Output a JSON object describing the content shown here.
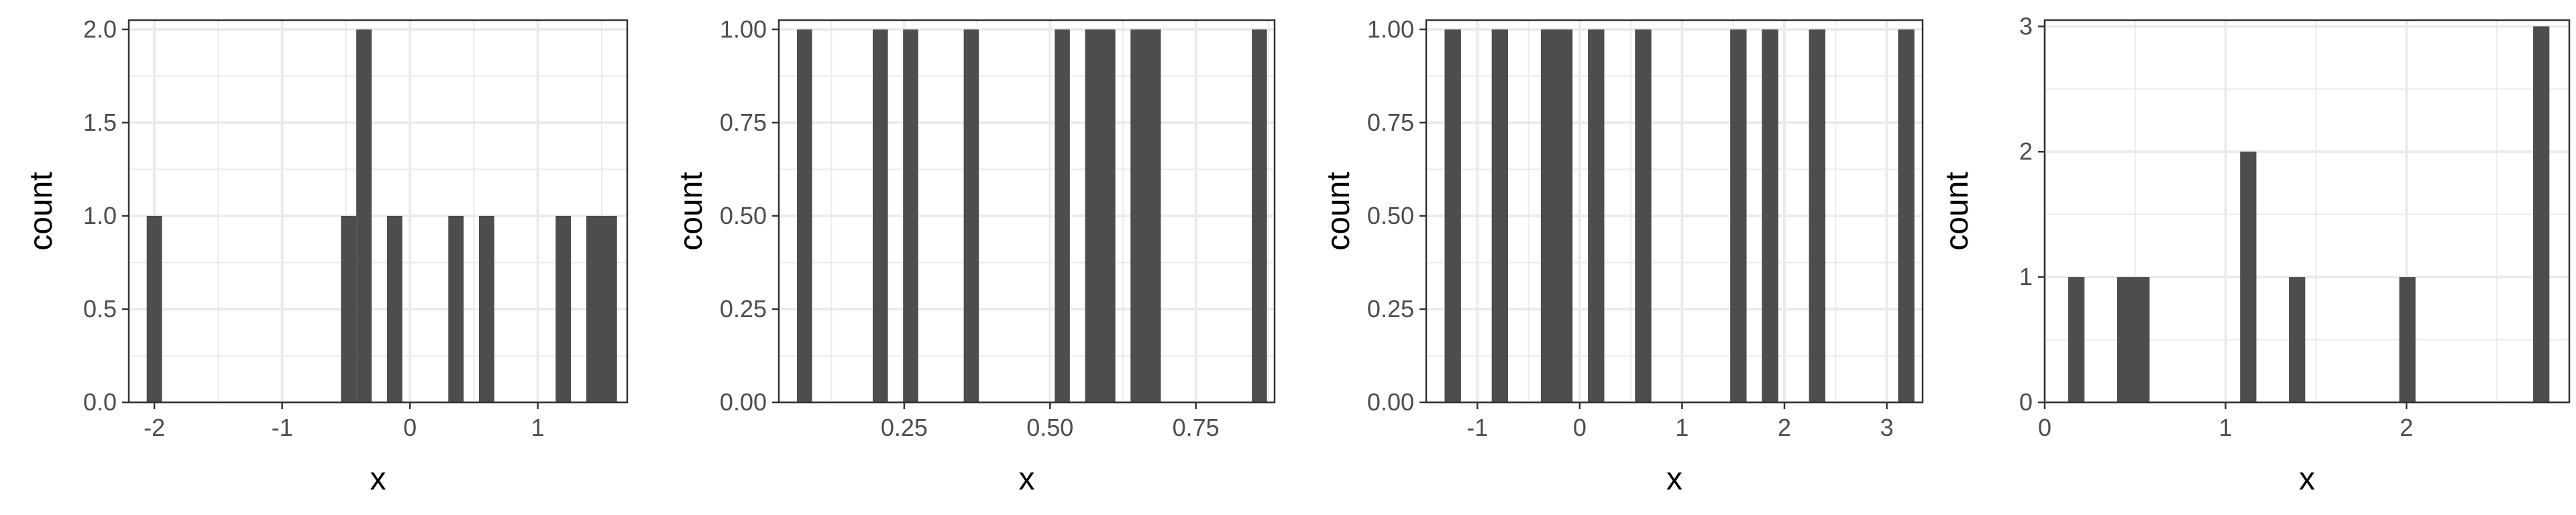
{
  "chart_data": [
    {
      "type": "histogram",
      "xlabel": "x",
      "ylabel": "count",
      "xlim": [
        -2.2,
        1.7
      ],
      "ylim": [
        0,
        2.05
      ],
      "x_ticks": [
        -2,
        -1,
        0,
        1
      ],
      "y_ticks": [
        0.0,
        0.5,
        1.0,
        1.5,
        2.0
      ],
      "y_tick_labels": [
        "0.0",
        "0.5",
        "1.0",
        "1.5",
        "2.0"
      ],
      "grid": true,
      "colors": {
        "bar": "#4d4d4d",
        "grid": "#ebebeb",
        "border": "#333333"
      },
      "bins": [
        {
          "x0": -2.06,
          "x1": -1.94,
          "count": 1
        },
        {
          "x0": -0.54,
          "x1": -0.42,
          "count": 1
        },
        {
          "x0": -0.42,
          "x1": -0.3,
          "count": 2
        },
        {
          "x0": -0.18,
          "x1": -0.06,
          "count": 1
        },
        {
          "x0": 0.3,
          "x1": 0.42,
          "count": 1
        },
        {
          "x0": 0.54,
          "x1": 0.66,
          "count": 1
        },
        {
          "x0": 1.14,
          "x1": 1.26,
          "count": 1
        },
        {
          "x0": 1.38,
          "x1": 1.62,
          "count": 1
        }
      ]
    },
    {
      "type": "histogram",
      "xlabel": "x",
      "ylabel": "count",
      "xlim": [
        0.035,
        0.885
      ],
      "ylim": [
        0,
        1.025
      ],
      "x_ticks": [
        0.25,
        0.5,
        0.75
      ],
      "x_tick_labels": [
        "0.25",
        "0.50",
        "0.75"
      ],
      "y_ticks": [
        0.0,
        0.25,
        0.5,
        0.75,
        1.0
      ],
      "y_tick_labels": [
        "0.00",
        "0.25",
        "0.50",
        "0.75",
        "1.00"
      ],
      "grid": true,
      "colors": {
        "bar": "#4d4d4d",
        "grid": "#ebebeb",
        "border": "#333333"
      },
      "bins": [
        {
          "x0": 0.066,
          "x1": 0.092,
          "count": 1
        },
        {
          "x0": 0.196,
          "x1": 0.222,
          "count": 1
        },
        {
          "x0": 0.248,
          "x1": 0.274,
          "count": 1
        },
        {
          "x0": 0.352,
          "x1": 0.378,
          "count": 1
        },
        {
          "x0": 0.508,
          "x1": 0.534,
          "count": 1
        },
        {
          "x0": 0.56,
          "x1": 0.612,
          "count": 1
        },
        {
          "x0": 0.638,
          "x1": 0.69,
          "count": 1
        },
        {
          "x0": 0.846,
          "x1": 0.872,
          "count": 1
        }
      ]
    },
    {
      "type": "histogram",
      "xlabel": "x",
      "ylabel": "count",
      "xlim": [
        -1.5,
        3.35
      ],
      "ylim": [
        0,
        1.025
      ],
      "x_ticks": [
        -1,
        0,
        1,
        2,
        3
      ],
      "y_ticks": [
        0.0,
        0.25,
        0.5,
        0.75,
        1.0
      ],
      "y_tick_labels": [
        "0.00",
        "0.25",
        "0.50",
        "0.75",
        "1.00"
      ],
      "grid": true,
      "colors": {
        "bar": "#4d4d4d",
        "grid": "#ebebeb",
        "border": "#333333"
      },
      "bins": [
        {
          "x0": -1.32,
          "x1": -1.16,
          "count": 1
        },
        {
          "x0": -0.86,
          "x1": -0.7,
          "count": 1
        },
        {
          "x0": -0.38,
          "x1": -0.07,
          "count": 1
        },
        {
          "x0": 0.08,
          "x1": 0.24,
          "count": 1
        },
        {
          "x0": 0.54,
          "x1": 0.7,
          "count": 1
        },
        {
          "x0": 1.47,
          "x1": 1.63,
          "count": 1
        },
        {
          "x0": 1.78,
          "x1": 1.94,
          "count": 1
        },
        {
          "x0": 2.24,
          "x1": 2.4,
          "count": 1
        },
        {
          "x0": 3.11,
          "x1": 3.27,
          "count": 1
        }
      ]
    },
    {
      "type": "histogram",
      "xlabel": "x",
      "ylabel": "count",
      "xlim": [
        0,
        2.9
      ],
      "ylim": [
        0,
        3.05
      ],
      "x_ticks": [
        0,
        1,
        2
      ],
      "y_ticks": [
        0,
        1,
        2,
        3
      ],
      "grid": true,
      "colors": {
        "bar": "#4d4d4d",
        "grid": "#ebebeb",
        "border": "#333333"
      },
      "bins": [
        {
          "x0": 0.13,
          "x1": 0.22,
          "count": 1
        },
        {
          "x0": 0.4,
          "x1": 0.58,
          "count": 1
        },
        {
          "x0": 1.08,
          "x1": 1.17,
          "count": 2
        },
        {
          "x0": 1.35,
          "x1": 1.44,
          "count": 1
        },
        {
          "x0": 1.96,
          "x1": 2.05,
          "count": 1
        },
        {
          "x0": 2.7,
          "x1": 2.79,
          "count": 3
        }
      ]
    }
  ]
}
